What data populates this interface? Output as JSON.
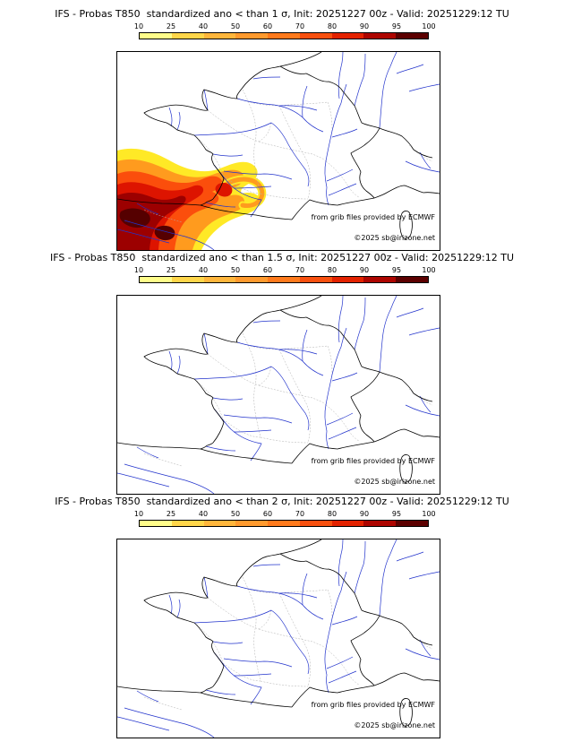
{
  "panels": [
    {
      "title": "IFS - Probas T850  standardized ano < than 1 σ, Init: 20251227 00z - Valid: 20251229:12 TU"
    },
    {
      "title": "IFS - Probas T850  standardized ano < than 1.5 σ, Init: 20251227 00z - Valid: 20251229:12 TU"
    },
    {
      "title": "IFS - Probas T850  standardized ano < than 2 σ, Init: 20251227 00z - Valid: 20251229:12 TU"
    }
  ],
  "colorbar": {
    "tick_labels": [
      "10",
      "25",
      "40",
      "50",
      "60",
      "70",
      "80",
      "90",
      "95",
      "100"
    ],
    "segment_colors": [
      "#fffd8a",
      "#ffd64a",
      "#ffb63c",
      "#ff9a2e",
      "#ff7a1c",
      "#f8500f",
      "#e32200",
      "#ad0500",
      "#5c0000"
    ]
  },
  "map_credits": {
    "provider_line": "from grib files provided by ECMWF",
    "copyright_line": "©2025 sb@irizone.net"
  },
  "map": {
    "river_color": "#2233cc",
    "border_color": "#000000",
    "admin_color": "#b0b0b0"
  }
}
